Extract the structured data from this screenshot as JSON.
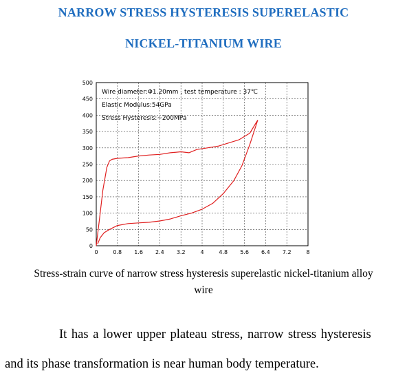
{
  "header": {
    "title_line1": "NARROW STRESS HYSTERESIS SUPERELASTIC",
    "title_line2": "NICKEL-TITANIUM WIRE"
  },
  "chart_data": {
    "type": "line",
    "x_ticks": [
      "0",
      "0.8",
      "1.6",
      "2.4",
      "3.2",
      "4",
      "4.8",
      "5.6",
      "6.4",
      "7.2",
      "8"
    ],
    "y_ticks": [
      "0",
      "50",
      "100",
      "150",
      "200",
      "250",
      "300",
      "350",
      "400",
      "450",
      "500"
    ],
    "xlim": [
      0,
      8
    ],
    "ylim": [
      0,
      500
    ],
    "grid": true,
    "annotations": [
      "Wire diameter:Φ1.20mm , test temperature : 37℃",
      "Elastic Modulus:54GPa",
      "Stress Hysteresis:~200MPa"
    ],
    "line_color": "#e02020",
    "series": [
      {
        "segment": "loading",
        "x": [
          0,
          0.12,
          0.25,
          0.4,
          0.5,
          0.6,
          0.8,
          1.2,
          1.6,
          2.0,
          2.4,
          2.8,
          3.2,
          3.5,
          3.8,
          4.2,
          4.6,
          5.0,
          5.4,
          5.8,
          6.1
        ],
        "y": [
          0,
          80,
          170,
          240,
          260,
          265,
          268,
          270,
          275,
          278,
          280,
          285,
          288,
          285,
          295,
          300,
          305,
          315,
          325,
          345,
          385
        ]
      },
      {
        "segment": "unloading",
        "x": [
          6.1,
          5.8,
          5.5,
          5.2,
          4.8,
          4.4,
          4.0,
          3.6,
          3.2,
          2.8,
          2.4,
          2.0,
          1.6,
          1.2,
          0.8,
          0.5,
          0.3,
          0.15,
          0.05
        ],
        "y": [
          385,
          310,
          245,
          200,
          160,
          130,
          112,
          100,
          92,
          82,
          76,
          72,
          70,
          68,
          62,
          50,
          40,
          25,
          5
        ]
      }
    ]
  },
  "caption": {
    "line1": "Stress-strain curve of narrow stress hysteresis superelastic nickel-titanium alloy",
    "line2": "wire"
  },
  "body": {
    "line1": "It has a lower upper plateau stress, narrow stress hysteresis",
    "line2": "and its phase transformation is near human body temperature."
  }
}
